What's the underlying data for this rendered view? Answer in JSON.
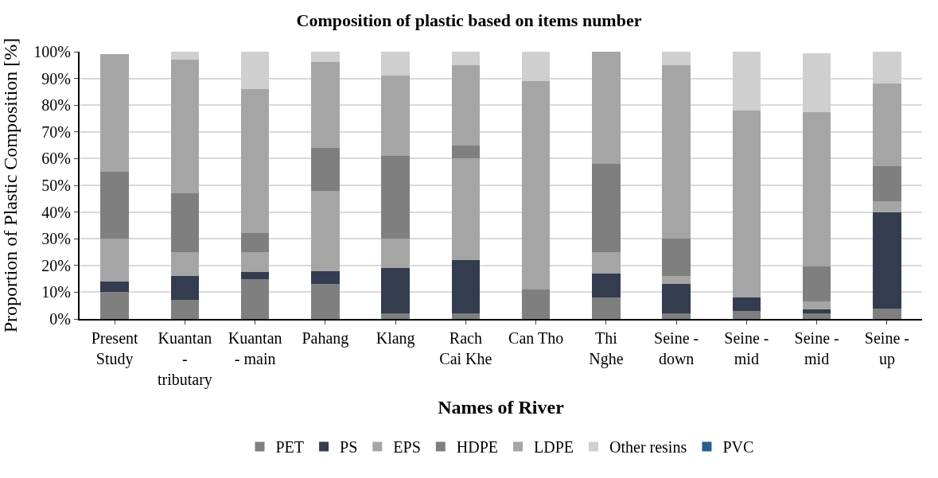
{
  "chart_data": {
    "type": "bar",
    "stacked": true,
    "title": "Composition of plastic based on items number",
    "xlabel": "Names of River",
    "ylabel": "Proportion of Plastic Composition [%]",
    "categories": [
      "Present\nStudy",
      "Kuantan\n-\ntributary",
      "Kuantan\n- main",
      "Pahang",
      "Klang",
      "Rach\nCai Khe",
      "Can Tho",
      "Thi\nNghe",
      "Seine -\ndown",
      "Seine -\nmid",
      "Seine -\nmid",
      "Seine -\nup"
    ],
    "series": [
      {
        "name": "PET",
        "color": "#7f7f7f",
        "values": [
          10,
          7,
          15,
          13,
          2,
          2,
          11,
          8,
          2,
          3,
          2,
          4
        ]
      },
      {
        "name": "PS",
        "color": "#333d4f",
        "values": [
          4,
          9,
          2.5,
          5,
          17,
          20,
          0,
          9,
          11,
          5,
          1.5,
          36
        ]
      },
      {
        "name": "EPS",
        "color": "#a5a5a5",
        "values": [
          16,
          9,
          7.5,
          30,
          11,
          38,
          56,
          8,
          3,
          0,
          3,
          4
        ]
      },
      {
        "name": "HDPE",
        "color": "#7f7f7f",
        "values": [
          25,
          22,
          7,
          16,
          31,
          5,
          0,
          33,
          14,
          0,
          13,
          13
        ]
      },
      {
        "name": "LDPE",
        "color": "#a5a5a5",
        "values": [
          44,
          50,
          54,
          32,
          30,
          30,
          22,
          42,
          65,
          70,
          58,
          31
        ]
      },
      {
        "name": "Other resins",
        "color": "#d0cfd0",
        "values": [
          0,
          3,
          14,
          4,
          9,
          5,
          11,
          0,
          5,
          22,
          22,
          12
        ]
      },
      {
        "name": "PVC",
        "color": "#255e91",
        "values": [
          0,
          0,
          0,
          0,
          0,
          0,
          0,
          0,
          0,
          0,
          0,
          0
        ]
      }
    ],
    "ylim": [
      0,
      100
    ],
    "yticks": [
      {
        "value": 0,
        "label": "0%"
      },
      {
        "value": 10,
        "label": "10%"
      },
      {
        "value": 20,
        "label": "20%"
      },
      {
        "value": 30,
        "label": "30%"
      },
      {
        "value": 40,
        "label": "40%"
      },
      {
        "value": 50,
        "label": "50%"
      },
      {
        "value": 60,
        "label": "60%"
      },
      {
        "value": 70,
        "label": "70%"
      },
      {
        "value": 80,
        "label": "80%"
      },
      {
        "value": 90,
        "label": "90%"
      },
      {
        "value": 100,
        "label": "100%"
      }
    ],
    "grid": "y",
    "legend": "bottom"
  }
}
